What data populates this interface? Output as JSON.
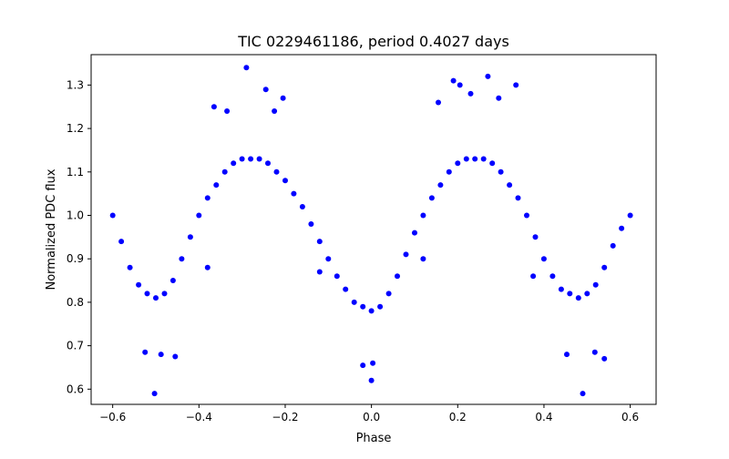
{
  "chart_data": {
    "type": "scatter",
    "title": "TIC 0229461186, period 0.4027 days",
    "xlabel": "Phase",
    "ylabel": "Normalized PDC flux",
    "xlim": [
      -0.65,
      0.66
    ],
    "ylim": [
      0.565,
      1.37
    ],
    "xticks": [
      -0.6,
      -0.4,
      -0.2,
      0.0,
      0.2,
      0.4,
      0.6
    ],
    "xtick_labels": [
      "−0.6",
      "−0.4",
      "−0.2",
      "0.0",
      "0.2",
      "0.4",
      "0.6"
    ],
    "yticks": [
      0.6,
      0.7,
      0.8,
      0.9,
      1.0,
      1.1,
      1.2,
      1.3
    ],
    "ytick_labels": [
      "0.6",
      "0.7",
      "0.8",
      "0.9",
      "1.0",
      "1.1",
      "1.2",
      "1.3"
    ],
    "grid": false,
    "series": [
      {
        "color": "#0000ff",
        "marker": "circle",
        "x": [
          -0.6,
          -0.58,
          -0.56,
          -0.54,
          -0.52,
          -0.5,
          -0.48,
          -0.46,
          -0.44,
          -0.42,
          -0.4,
          -0.38,
          -0.36,
          -0.34,
          -0.32,
          -0.3,
          -0.28,
          -0.26,
          -0.24,
          -0.22,
          -0.2,
          -0.18,
          -0.16,
          -0.14,
          -0.12,
          -0.1,
          -0.08,
          -0.06,
          -0.04,
          -0.02,
          0.0,
          0.02,
          0.04,
          0.06,
          0.08,
          0.1,
          0.12,
          0.14,
          0.16,
          0.18,
          0.2,
          0.22,
          0.24,
          0.26,
          0.28,
          0.3,
          0.32,
          0.34,
          0.36,
          0.38,
          0.4,
          0.42,
          0.44,
          0.46,
          0.48,
          0.5,
          0.52,
          0.54,
          0.56,
          0.58,
          0.6,
          -0.29,
          -0.245,
          -0.225,
          -0.205,
          -0.365,
          -0.335,
          -0.525,
          -0.503,
          -0.488,
          -0.455,
          -0.0,
          0.003,
          -0.02,
          0.205,
          0.19,
          0.155,
          0.27,
          0.295,
          0.335,
          0.49,
          0.518,
          0.54,
          0.453,
          0.375,
          -0.38,
          0.23,
          -0.12,
          0.12
        ],
        "y": [
          1.0,
          0.94,
          0.88,
          0.84,
          0.82,
          0.81,
          0.82,
          0.85,
          0.9,
          0.95,
          1.0,
          1.04,
          1.07,
          1.1,
          1.12,
          1.13,
          1.13,
          1.13,
          1.12,
          1.1,
          1.08,
          1.05,
          1.02,
          0.98,
          0.94,
          0.9,
          0.86,
          0.83,
          0.8,
          0.79,
          0.78,
          0.79,
          0.82,
          0.86,
          0.91,
          0.96,
          1.0,
          1.04,
          1.07,
          1.1,
          1.12,
          1.13,
          1.13,
          1.13,
          1.12,
          1.1,
          1.07,
          1.04,
          1.0,
          0.95,
          0.9,
          0.86,
          0.83,
          0.82,
          0.81,
          0.82,
          0.84,
          0.88,
          0.93,
          0.97,
          1.0,
          1.34,
          1.29,
          1.24,
          1.27,
          1.25,
          1.24,
          0.685,
          0.59,
          0.68,
          0.675,
          0.62,
          0.66,
          0.655,
          1.3,
          1.31,
          1.26,
          1.32,
          1.27,
          1.3,
          0.59,
          0.685,
          0.67,
          0.68,
          0.86,
          0.88,
          1.28,
          0.87,
          0.9
        ]
      }
    ]
  }
}
